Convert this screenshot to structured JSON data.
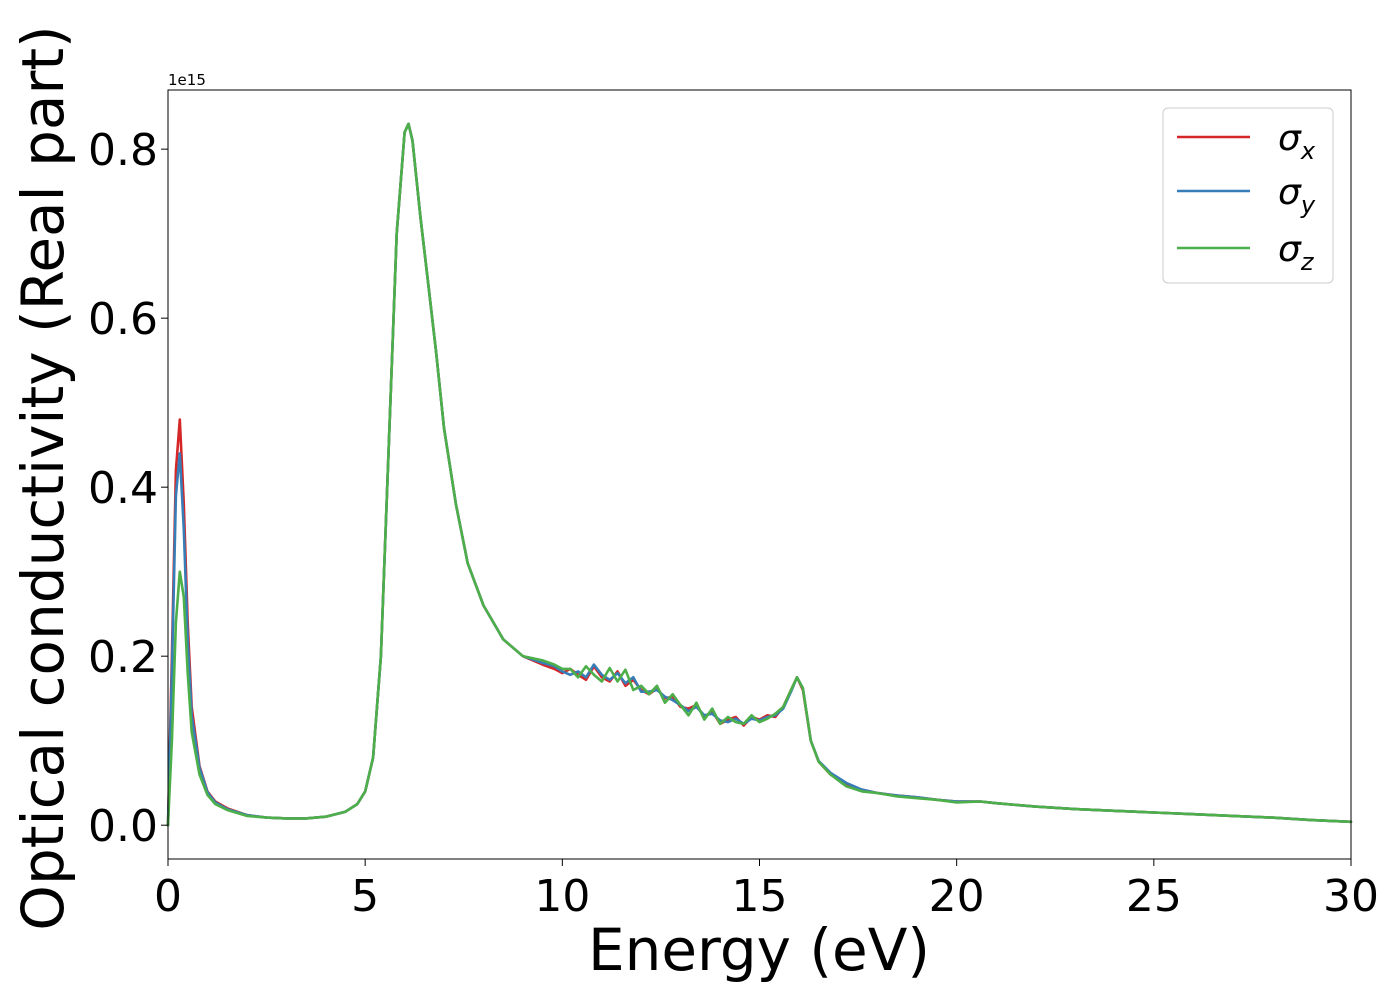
{
  "chart_data": {
    "type": "line",
    "title": "",
    "xlabel": "Energy (eV)",
    "ylabel": "Optical conductivity (Real part)",
    "y_offset_text": "1e15",
    "xlim": [
      0,
      30
    ],
    "ylim": [
      -0.04,
      0.87
    ],
    "xticks": [
      0,
      5,
      10,
      15,
      20,
      25,
      30
    ],
    "xtick_labels": [
      "0",
      "5",
      "10",
      "15",
      "20",
      "25",
      "30"
    ],
    "yticks": [
      0.0,
      0.2,
      0.4,
      0.6,
      0.8
    ],
    "ytick_labels": [
      "0.0",
      "0.2",
      "0.4",
      "0.6",
      "0.8"
    ],
    "grid": false,
    "legend_position": "top-right",
    "series": [
      {
        "name": "σx",
        "symbol": "σ",
        "subscript": "x",
        "color": "#d62728",
        "x": [
          0,
          0.1,
          0.2,
          0.3,
          0.4,
          0.5,
          0.6,
          0.8,
          1.0,
          1.2,
          1.5,
          2.0,
          2.5,
          3.0,
          3.5,
          4.0,
          4.5,
          4.8,
          5.0,
          5.2,
          5.4,
          5.6,
          5.8,
          6.0,
          6.1,
          6.2,
          6.4,
          6.6,
          6.8,
          7.0,
          7.3,
          7.6,
          8.0,
          8.5,
          9.0,
          9.5,
          9.8,
          10.0,
          10.2,
          10.4,
          10.6,
          10.8,
          11.0,
          11.2,
          11.4,
          11.6,
          11.8,
          12.0,
          12.2,
          12.4,
          12.6,
          12.8,
          13.0,
          13.2,
          13.4,
          13.6,
          13.8,
          14.0,
          14.2,
          14.4,
          14.6,
          14.8,
          15.0,
          15.2,
          15.4,
          15.6,
          15.8,
          15.95,
          16.1,
          16.3,
          16.5,
          16.8,
          17.2,
          17.6,
          18.0,
          18.5,
          19.0,
          19.5,
          20.0,
          20.6,
          21.0,
          22.0,
          23.0,
          24.0,
          25.0,
          26.0,
          27.0,
          28.0,
          29.0,
          30.0
        ],
        "values": [
          0.0,
          0.2,
          0.42,
          0.48,
          0.38,
          0.24,
          0.14,
          0.07,
          0.04,
          0.028,
          0.02,
          0.012,
          0.009,
          0.008,
          0.008,
          0.01,
          0.016,
          0.025,
          0.04,
          0.08,
          0.2,
          0.45,
          0.7,
          0.82,
          0.83,
          0.81,
          0.72,
          0.64,
          0.56,
          0.47,
          0.38,
          0.31,
          0.26,
          0.22,
          0.2,
          0.19,
          0.185,
          0.18,
          0.185,
          0.178,
          0.172,
          0.188,
          0.175,
          0.17,
          0.182,
          0.165,
          0.172,
          0.16,
          0.155,
          0.162,
          0.15,
          0.152,
          0.14,
          0.138,
          0.142,
          0.128,
          0.135,
          0.12,
          0.125,
          0.128,
          0.118,
          0.128,
          0.125,
          0.13,
          0.128,
          0.14,
          0.16,
          0.175,
          0.16,
          0.1,
          0.075,
          0.06,
          0.048,
          0.042,
          0.038,
          0.035,
          0.033,
          0.03,
          0.028,
          0.028,
          0.026,
          0.022,
          0.019,
          0.017,
          0.015,
          0.013,
          0.011,
          0.009,
          0.006,
          0.004
        ]
      },
      {
        "name": "σy",
        "symbol": "σ",
        "subscript": "y",
        "color": "#377eb8",
        "x": [
          0,
          0.1,
          0.2,
          0.3,
          0.4,
          0.5,
          0.6,
          0.8,
          1.0,
          1.2,
          1.5,
          2.0,
          2.5,
          3.0,
          3.5,
          4.0,
          4.5,
          4.8,
          5.0,
          5.2,
          5.4,
          5.6,
          5.8,
          6.0,
          6.1,
          6.2,
          6.4,
          6.6,
          6.8,
          7.0,
          7.3,
          7.6,
          8.0,
          8.5,
          9.0,
          9.5,
          9.8,
          10.0,
          10.2,
          10.4,
          10.6,
          10.8,
          11.0,
          11.2,
          11.4,
          11.6,
          11.8,
          12.0,
          12.2,
          12.4,
          12.6,
          12.8,
          13.0,
          13.2,
          13.4,
          13.6,
          13.8,
          14.0,
          14.2,
          14.4,
          14.6,
          14.8,
          15.0,
          15.2,
          15.4,
          15.6,
          15.8,
          15.95,
          16.1,
          16.3,
          16.5,
          16.8,
          17.2,
          17.6,
          18.0,
          18.5,
          19.0,
          19.5,
          20.0,
          20.6,
          21.0,
          22.0,
          23.0,
          24.0,
          25.0,
          26.0,
          27.0,
          28.0,
          29.0,
          30.0
        ],
        "values": [
          0.0,
          0.18,
          0.39,
          0.44,
          0.35,
          0.22,
          0.13,
          0.068,
          0.039,
          0.027,
          0.019,
          0.012,
          0.009,
          0.008,
          0.008,
          0.01,
          0.016,
          0.025,
          0.04,
          0.08,
          0.2,
          0.45,
          0.7,
          0.82,
          0.83,
          0.81,
          0.72,
          0.64,
          0.56,
          0.47,
          0.38,
          0.31,
          0.26,
          0.22,
          0.2,
          0.192,
          0.188,
          0.182,
          0.178,
          0.182,
          0.175,
          0.19,
          0.178,
          0.172,
          0.18,
          0.168,
          0.175,
          0.158,
          0.158,
          0.16,
          0.152,
          0.148,
          0.142,
          0.135,
          0.14,
          0.13,
          0.132,
          0.124,
          0.122,
          0.126,
          0.12,
          0.126,
          0.124,
          0.128,
          0.13,
          0.138,
          0.158,
          0.175,
          0.162,
          0.1,
          0.076,
          0.062,
          0.05,
          0.042,
          0.038,
          0.035,
          0.033,
          0.03,
          0.028,
          0.028,
          0.026,
          0.022,
          0.019,
          0.017,
          0.015,
          0.013,
          0.011,
          0.009,
          0.006,
          0.004
        ]
      },
      {
        "name": "σz",
        "symbol": "σ",
        "subscript": "z",
        "color": "#4daf4a",
        "x": [
          0,
          0.1,
          0.2,
          0.3,
          0.4,
          0.5,
          0.6,
          0.8,
          1.0,
          1.2,
          1.5,
          2.0,
          2.5,
          3.0,
          3.5,
          4.0,
          4.5,
          4.8,
          5.0,
          5.2,
          5.4,
          5.6,
          5.8,
          6.0,
          6.1,
          6.2,
          6.4,
          6.6,
          6.8,
          7.0,
          7.3,
          7.6,
          8.0,
          8.5,
          9.0,
          9.5,
          9.8,
          10.0,
          10.2,
          10.4,
          10.6,
          10.8,
          11.0,
          11.2,
          11.4,
          11.6,
          11.8,
          12.0,
          12.2,
          12.4,
          12.6,
          12.8,
          13.0,
          13.2,
          13.4,
          13.6,
          13.8,
          14.0,
          14.2,
          14.4,
          14.6,
          14.8,
          15.0,
          15.2,
          15.4,
          15.6,
          15.8,
          15.95,
          16.1,
          16.3,
          16.5,
          16.8,
          17.2,
          17.6,
          18.0,
          18.5,
          19.0,
          19.5,
          20.0,
          20.6,
          21.0,
          22.0,
          23.0,
          24.0,
          25.0,
          26.0,
          27.0,
          28.0,
          29.0,
          30.0
        ],
        "values": [
          0.0,
          0.1,
          0.24,
          0.3,
          0.27,
          0.18,
          0.11,
          0.06,
          0.036,
          0.025,
          0.018,
          0.011,
          0.009,
          0.008,
          0.008,
          0.01,
          0.016,
          0.025,
          0.04,
          0.08,
          0.2,
          0.45,
          0.7,
          0.82,
          0.83,
          0.81,
          0.72,
          0.64,
          0.56,
          0.47,
          0.38,
          0.31,
          0.26,
          0.22,
          0.2,
          0.195,
          0.19,
          0.185,
          0.185,
          0.175,
          0.188,
          0.178,
          0.17,
          0.186,
          0.17,
          0.184,
          0.16,
          0.165,
          0.155,
          0.165,
          0.145,
          0.155,
          0.142,
          0.13,
          0.145,
          0.125,
          0.138,
          0.12,
          0.128,
          0.122,
          0.12,
          0.13,
          0.122,
          0.126,
          0.132,
          0.14,
          0.16,
          0.175,
          0.162,
          0.1,
          0.075,
          0.06,
          0.046,
          0.04,
          0.038,
          0.034,
          0.032,
          0.03,
          0.027,
          0.028,
          0.026,
          0.022,
          0.019,
          0.017,
          0.015,
          0.013,
          0.011,
          0.009,
          0.006,
          0.004
        ]
      }
    ]
  }
}
